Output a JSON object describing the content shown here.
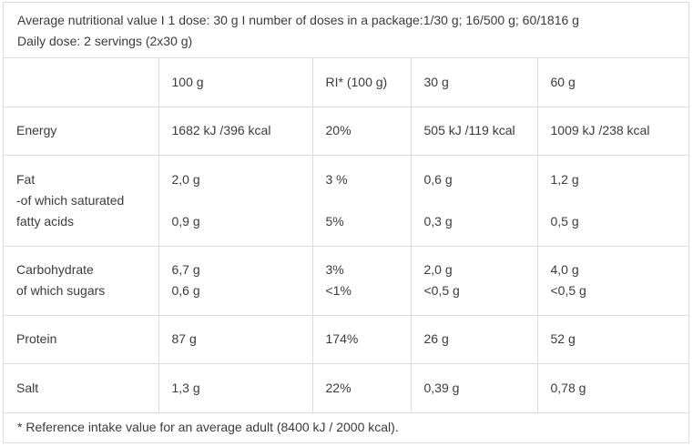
{
  "info": {
    "line1": "Average nutritional value I 1 dose: 30 g I number of doses in a package:1/30 g; 16/500 g; 60/1816 g",
    "line2": "Daily dose: 2 servings (2x30 g)"
  },
  "table": {
    "header": [
      "",
      "100 g",
      "RI* (100 g)",
      "30 g",
      "60 g"
    ],
    "rows": [
      {
        "name": [
          "Energy"
        ],
        "cells": [
          [
            "1682 kJ /396 kcal"
          ],
          [
            "20%"
          ],
          [
            "505 kJ /119 kcal"
          ],
          [
            "1009 kJ /238 kcal"
          ]
        ]
      },
      {
        "name": [
          "Fat",
          "-of which saturated",
          "fatty acids"
        ],
        "cells": [
          [
            "2,0 g",
            "",
            "0,9 g"
          ],
          [
            "3 %",
            "",
            "5%"
          ],
          [
            "0,6 g",
            "",
            "0,3 g"
          ],
          [
            "1,2 g",
            "",
            "0,5 g"
          ]
        ]
      },
      {
        "name": [
          "Carbohydrate",
          "of which sugars"
        ],
        "cells": [
          [
            "6,7 g",
            "0,6 g"
          ],
          [
            "3%",
            "<1%"
          ],
          [
            "2,0 g",
            "<0,5 g"
          ],
          [
            "4,0 g",
            "<0,5 g"
          ]
        ]
      },
      {
        "name": [
          "Protein"
        ],
        "cells": [
          [
            "87 g"
          ],
          [
            "174%"
          ],
          [
            "26 g"
          ],
          [
            "52 g"
          ]
        ]
      },
      {
        "name": [
          "Salt"
        ],
        "cells": [
          [
            "1,3 g"
          ],
          [
            "22%"
          ],
          [
            "0,39 g"
          ],
          [
            "0,78 g"
          ]
        ]
      }
    ]
  },
  "footnote": "* Reference intake value for an average adult (8400 kJ / 2000 kcal)."
}
